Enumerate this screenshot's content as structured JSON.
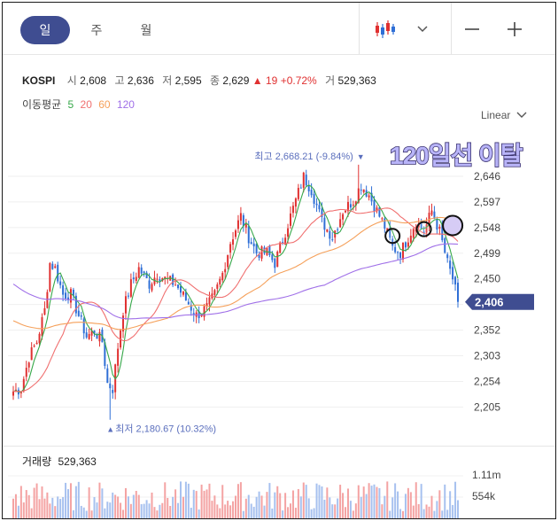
{
  "tabs": [
    {
      "label": "일",
      "active": true
    },
    {
      "label": "주",
      "active": false
    },
    {
      "label": "월",
      "active": false
    }
  ],
  "toolbar": {
    "chart_type_icon": "candlestick-icon",
    "dropdown_icon": "chevron-down-icon",
    "zoom_out_icon": "minus-icon",
    "zoom_in_icon": "plus-icon"
  },
  "quote": {
    "name": "KOSPI",
    "open_label": "시",
    "open": "2,608",
    "high_label": "고",
    "high": "2,636",
    "low_label": "저",
    "low": "2,595",
    "close_label": "종",
    "close": "2,629",
    "change_arrow": "▲",
    "change": "19",
    "change_pct": "+0.72%",
    "volume_label": "거",
    "volume": "529,363"
  },
  "moving_average": {
    "label": "이동평균",
    "periods": [
      {
        "label": "5",
        "color": "#37a84a"
      },
      {
        "label": "20",
        "color": "#f07070"
      },
      {
        "label": "60",
        "color": "#f5a05a"
      },
      {
        "label": "120",
        "color": "#a070e8"
      }
    ]
  },
  "scale": {
    "label": "Linear",
    "icon": "chevron-down-icon"
  },
  "annotation_text": "120일선 이탈",
  "volume_panel": {
    "label": "거래량",
    "value": "529,363"
  },
  "colors": {
    "up": "#e03131",
    "down": "#2f6fd6",
    "accent": "#3f4d91",
    "current_price_bg": "#3f4d91"
  },
  "chart_data": {
    "type": "candlestick",
    "y_ticks": [
      "2,646",
      "2,597",
      "2,548",
      "2,499",
      "2,450",
      "2,401",
      "2,352",
      "2,303",
      "2,254",
      "2,205"
    ],
    "y_tick_values": [
      2646,
      2597,
      2548,
      2499,
      2450,
      2401,
      2352,
      2303,
      2254,
      2205
    ],
    "ylim": [
      2165,
      2690
    ],
    "current_price": 2406,
    "current_price_label": "2,406",
    "max_label": "최고 2,668.21 (-9.84%)",
    "max_arrow": "▼",
    "min_label": "최저 2,180.67 (10.32%)",
    "min_arrow": "▲",
    "max_value": 2668.21,
    "min_value": 2180.67,
    "volume_ticks": [
      "1.11m",
      "554k"
    ],
    "volume_tick_values": [
      1110000,
      554000
    ],
    "grid": true,
    "legend": "none",
    "cross_markers": [
      {
        "day": 145,
        "price": 2532
      },
      {
        "day": 157,
        "price": 2545
      },
      {
        "day": 168,
        "price": 2552
      }
    ],
    "key_prices": [
      {
        "day": 0,
        "price": 2235
      },
      {
        "day": 3,
        "price": 2240
      },
      {
        "day": 6,
        "price": 2300
      },
      {
        "day": 9,
        "price": 2330
      },
      {
        "day": 12,
        "price": 2390
      },
      {
        "day": 14,
        "price": 2480
      },
      {
        "day": 16,
        "price": 2470
      },
      {
        "day": 19,
        "price": 2420
      },
      {
        "day": 22,
        "price": 2420
      },
      {
        "day": 25,
        "price": 2380
      },
      {
        "day": 28,
        "price": 2340
      },
      {
        "day": 31,
        "price": 2350
      },
      {
        "day": 34,
        "price": 2330
      },
      {
        "day": 36,
        "price": 2250
      },
      {
        "day": 38,
        "price": 2240
      },
      {
        "day": 40,
        "price": 2320
      },
      {
        "day": 42,
        "price": 2390
      },
      {
        "day": 45,
        "price": 2440
      },
      {
        "day": 48,
        "price": 2470
      },
      {
        "day": 52,
        "price": 2440
      },
      {
        "day": 55,
        "price": 2460
      },
      {
        "day": 58,
        "price": 2450
      },
      {
        "day": 62,
        "price": 2440
      },
      {
        "day": 66,
        "price": 2410
      },
      {
        "day": 70,
        "price": 2380
      },
      {
        "day": 74,
        "price": 2395
      },
      {
        "day": 77,
        "price": 2420
      },
      {
        "day": 80,
        "price": 2460
      },
      {
        "day": 83,
        "price": 2520
      },
      {
        "day": 87,
        "price": 2570
      },
      {
        "day": 90,
        "price": 2530
      },
      {
        "day": 93,
        "price": 2500
      },
      {
        "day": 97,
        "price": 2500
      },
      {
        "day": 100,
        "price": 2480
      },
      {
        "day": 104,
        "price": 2540
      },
      {
        "day": 108,
        "price": 2600
      },
      {
        "day": 111,
        "price": 2645
      },
      {
        "day": 114,
        "price": 2620
      },
      {
        "day": 118,
        "price": 2560
      },
      {
        "day": 122,
        "price": 2530
      },
      {
        "day": 126,
        "price": 2580
      },
      {
        "day": 130,
        "price": 2600
      },
      {
        "day": 133,
        "price": 2630
      },
      {
        "day": 136,
        "price": 2610
      },
      {
        "day": 139,
        "price": 2580
      },
      {
        "day": 142,
        "price": 2550
      },
      {
        "day": 145,
        "price": 2510
      },
      {
        "day": 148,
        "price": 2500
      },
      {
        "day": 151,
        "price": 2530
      },
      {
        "day": 154,
        "price": 2560
      },
      {
        "day": 157,
        "price": 2540
      },
      {
        "day": 160,
        "price": 2580
      },
      {
        "day": 163,
        "price": 2540
      },
      {
        "day": 166,
        "price": 2480
      },
      {
        "day": 168,
        "price": 2450
      },
      {
        "day": 170,
        "price": 2406
      }
    ]
  }
}
